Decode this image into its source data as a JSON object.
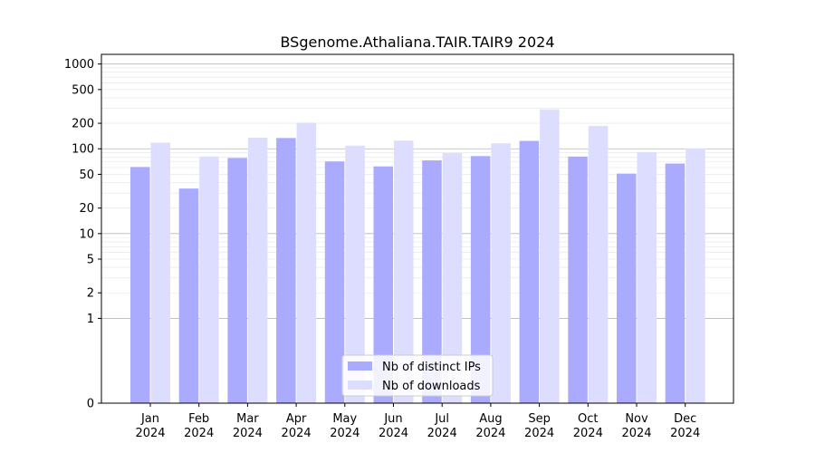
{
  "chart_data": {
    "type": "bar",
    "title": "BSgenome.Athaliana.TAIR.TAIR9 2024",
    "xlabel": "",
    "ylabel": "",
    "yscale": "symlog",
    "ylim": [
      0,
      1300
    ],
    "yticks": [
      {
        "value": 0,
        "label": "0"
      },
      {
        "value": 1,
        "label": "1"
      },
      {
        "value": 2,
        "label": "2"
      },
      {
        "value": 5,
        "label": "5"
      },
      {
        "value": 10,
        "label": "10"
      },
      {
        "value": 20,
        "label": "20"
      },
      {
        "value": 50,
        "label": "50"
      },
      {
        "value": 100,
        "label": "100"
      },
      {
        "value": 200,
        "label": "200"
      },
      {
        "value": 500,
        "label": "500"
      },
      {
        "value": 1000,
        "label": "1000"
      }
    ],
    "categories": [
      {
        "month": "Jan",
        "year": "2024"
      },
      {
        "month": "Feb",
        "year": "2024"
      },
      {
        "month": "Mar",
        "year": "2024"
      },
      {
        "month": "Apr",
        "year": "2024"
      },
      {
        "month": "May",
        "year": "2024"
      },
      {
        "month": "Jun",
        "year": "2024"
      },
      {
        "month": "Jul",
        "year": "2024"
      },
      {
        "month": "Aug",
        "year": "2024"
      },
      {
        "month": "Sep",
        "year": "2024"
      },
      {
        "month": "Oct",
        "year": "2024"
      },
      {
        "month": "Nov",
        "year": "2024"
      },
      {
        "month": "Dec",
        "year": "2024"
      }
    ],
    "series": [
      {
        "name": "Nb of distinct IPs",
        "color": "#aaaaff",
        "values": [
          61,
          34,
          78,
          134,
          71,
          62,
          73,
          82,
          124,
          81,
          51,
          67
        ]
      },
      {
        "name": "Nb of downloads",
        "color": "#ddddff",
        "values": [
          118,
          81,
          135,
          203,
          109,
          125,
          89,
          116,
          292,
          186,
          91,
          101
        ]
      }
    ],
    "grid": true,
    "legend_position": "bottom-center"
  }
}
